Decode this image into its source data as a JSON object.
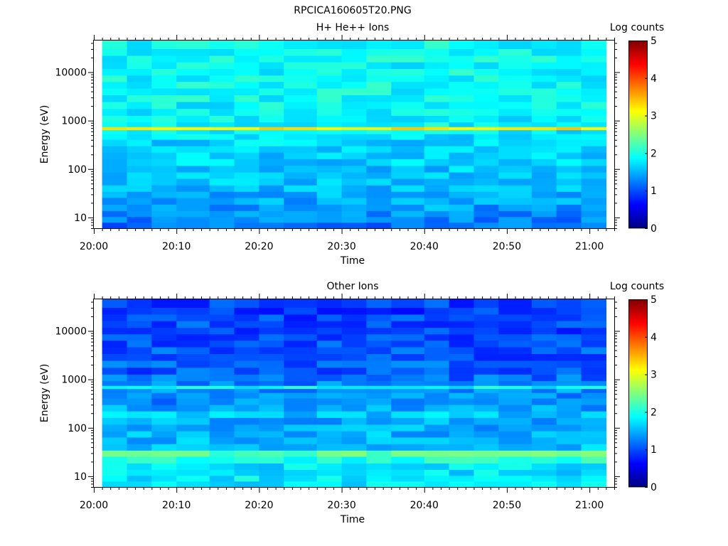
{
  "figure": {
    "title": "RPCICA160605T20.PNG"
  },
  "chart_data": [
    {
      "type": "heatmap",
      "title": "H+ He++ Ions",
      "xlabel": "Time",
      "ylabel": "Energy (eV)",
      "x_ticks": [
        "20:00",
        "20:10",
        "20:20",
        "20:30",
        "20:40",
        "20:50",
        "21:00"
      ],
      "x_range": [
        "20:00",
        "21:03"
      ],
      "data_time_range": [
        "20:01",
        "21:02"
      ],
      "y_ticks": [
        "10",
        "100",
        "1000",
        "10000"
      ],
      "y_scale": "log",
      "y_range": [
        6,
        45000
      ],
      "colorbar": {
        "label": "Log counts",
        "ticks": [
          "0",
          "1",
          "2",
          "3",
          "4",
          "5"
        ],
        "range": [
          0,
          5
        ],
        "colormap": "jet"
      },
      "energy_bands_eV": [
        7,
        9,
        12,
        16,
        22,
        30,
        40,
        55,
        75,
        100,
        140,
        190,
        260,
        350,
        480,
        600,
        700,
        800,
        1100,
        1500,
        2100,
        2900,
        4000,
        5500,
        7500,
        10000,
        14000,
        19000,
        26000,
        36000
      ],
      "time_sweeps": [
        "20:01",
        "20:04",
        "20:07",
        "20:10",
        "20:14",
        "20:17",
        "20:20",
        "20:23",
        "20:27",
        "20:30",
        "20:33",
        "20:36",
        "20:40",
        "20:43",
        "20:46",
        "20:49",
        "20:53",
        "20:56",
        "20:59"
      ],
      "band_mean_log_counts": [
        1.2,
        1.25,
        1.35,
        1.4,
        1.45,
        1.5,
        1.5,
        1.55,
        1.6,
        1.6,
        1.65,
        1.65,
        1.7,
        1.7,
        1.75,
        1.8,
        3.2,
        1.85,
        1.85,
        1.85,
        1.85,
        1.9,
        1.9,
        1.9,
        1.9,
        1.9,
        1.9,
        1.9,
        1.9,
        1.9
      ],
      "features": [
        {
          "label": "",
          "energy_eV": 750,
          "log_counts": 3.2
        }
      ]
    },
    {
      "type": "heatmap",
      "title": "Other Ions",
      "xlabel": "Time",
      "ylabel": "Energy (eV)",
      "x_ticks": [
        "20:00",
        "20:10",
        "20:20",
        "20:30",
        "20:40",
        "20:50",
        "21:00"
      ],
      "x_range": [
        "20:00",
        "21:03"
      ],
      "data_time_range": [
        "20:01",
        "21:02"
      ],
      "y_ticks": [
        "10",
        "100",
        "1000",
        "10000"
      ],
      "y_scale": "log",
      "y_range": [
        6,
        45000
      ],
      "colorbar": {
        "label": "Log counts",
        "ticks": [
          "0",
          "1",
          "2",
          "3",
          "4",
          "5"
        ],
        "range": [
          0,
          5
        ],
        "colormap": "jet"
      },
      "energy_bands_eV": [
        7,
        9,
        12,
        16,
        22,
        30,
        40,
        55,
        75,
        100,
        140,
        190,
        260,
        350,
        480,
        600,
        700,
        800,
        1100,
        1500,
        2100,
        2900,
        4000,
        5500,
        7500,
        10000,
        14000,
        19000,
        26000,
        36000
      ],
      "time_sweeps": [
        "20:01",
        "20:04",
        "20:07",
        "20:10",
        "20:14",
        "20:17",
        "20:20",
        "20:23",
        "20:27",
        "20:30",
        "20:33",
        "20:36",
        "20:40",
        "20:43",
        "20:46",
        "20:49",
        "20:53",
        "20:56",
        "20:59"
      ],
      "band_mean_log_counts": [
        1.8,
        1.8,
        1.75,
        1.75,
        2.0,
        2.3,
        1.6,
        1.5,
        1.5,
        1.45,
        1.45,
        1.6,
        1.4,
        1.3,
        1.3,
        1.35,
        1.9,
        1.25,
        1.15,
        1.05,
        1.1,
        1.0,
        1.05,
        1.0,
        0.95,
        0.95,
        1.0,
        0.95,
        0.9,
        0.95
      ],
      "features": [
        {
          "label": "",
          "energy_eV": 750,
          "log_counts": 1.9
        },
        {
          "label": "",
          "energy_eV": 27,
          "log_counts": 2.3
        }
      ]
    }
  ]
}
